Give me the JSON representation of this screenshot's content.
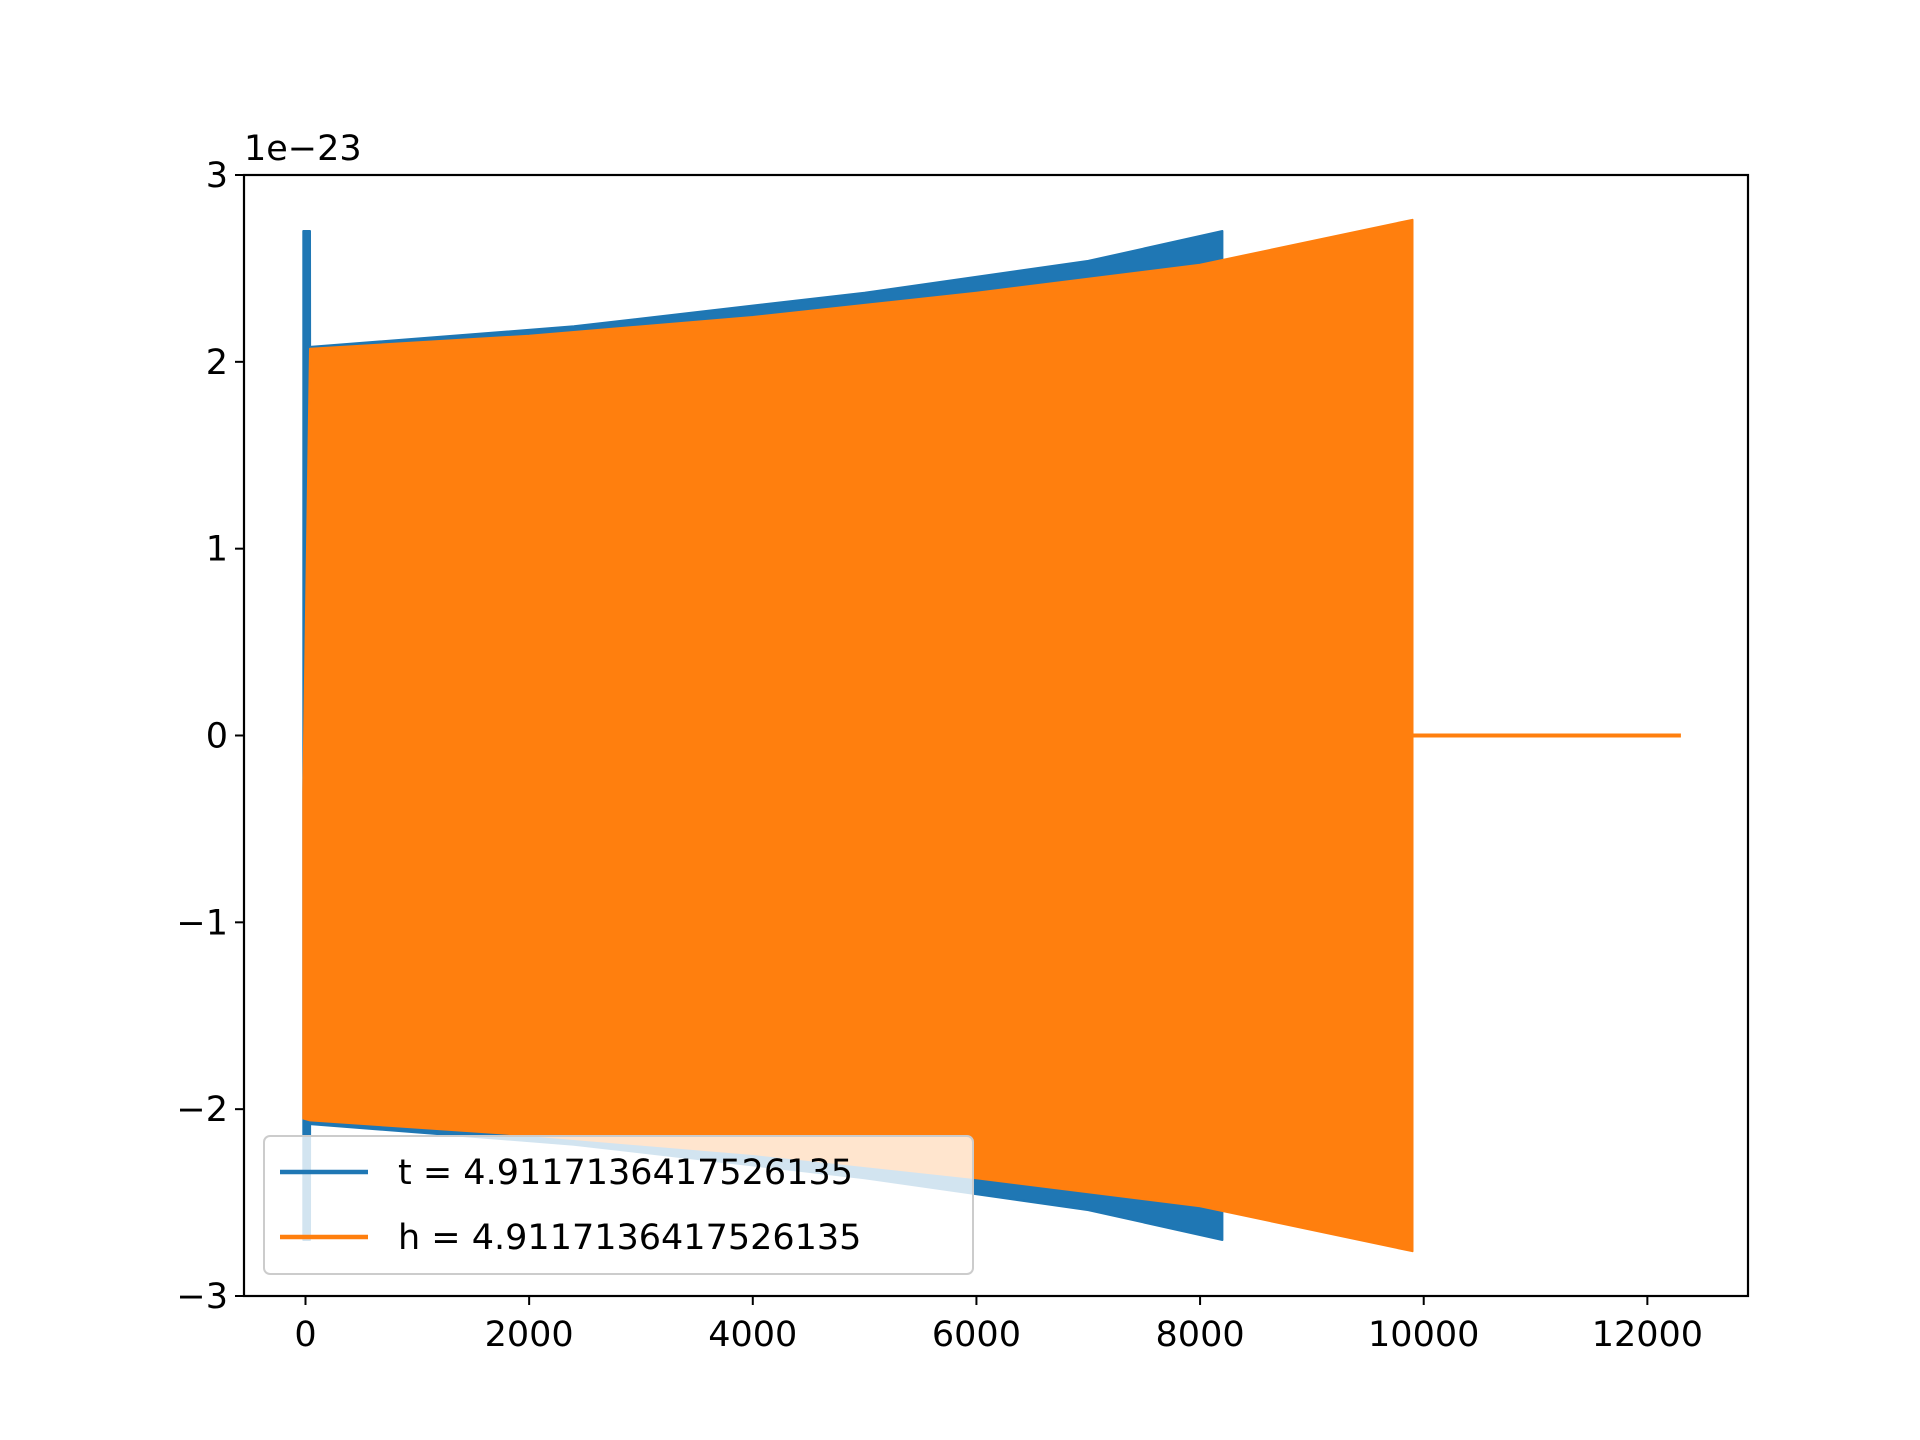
{
  "chart_data": {
    "type": "line",
    "xlim": [
      -550,
      12900
    ],
    "ylim": [
      -3,
      3
    ],
    "x_ticks": [
      0,
      2000,
      4000,
      6000,
      8000,
      10000,
      12000
    ],
    "x_tick_labels": [
      "0",
      "2000",
      "4000",
      "6000",
      "8000",
      "10000",
      "12000"
    ],
    "y_ticks": [
      -3,
      -2,
      -1,
      0,
      1,
      2,
      3
    ],
    "y_tick_labels": [
      "−3",
      "−2",
      "−1",
      "0",
      "1",
      "2",
      "3"
    ],
    "y_offset_label": "1e−23",
    "grid": false,
    "legend_position": "lower left",
    "series": [
      {
        "name": "t = 4.9117136417526135",
        "color": "#1f77b4",
        "render": "oscillation-envelope",
        "envelope": [
          {
            "x": -20,
            "y_min": -2.7,
            "y_max": 2.7
          },
          {
            "x": 40,
            "y_min": -2.7,
            "y_max": 2.7
          },
          {
            "x": 41,
            "y_min": -2.08,
            "y_max": 2.08
          },
          {
            "x": 2400,
            "y_min": -2.19,
            "y_max": 2.19
          },
          {
            "x": 5000,
            "y_min": -2.37,
            "y_max": 2.37
          },
          {
            "x": 7000,
            "y_min": -2.54,
            "y_max": 2.54
          },
          {
            "x": 8200,
            "y_min": -2.7,
            "y_max": 2.7
          }
        ]
      },
      {
        "name": "h = 4.9117136417526135",
        "color": "#ff7f0e",
        "render": "oscillation-envelope",
        "envelope": [
          {
            "x": -20,
            "y_min": -2.05,
            "y_max": -0.3
          },
          {
            "x": 40,
            "y_min": -2.06,
            "y_max": 2.07
          },
          {
            "x": 2000,
            "y_min": -2.14,
            "y_max": 2.14
          },
          {
            "x": 4000,
            "y_min": -2.24,
            "y_max": 2.24
          },
          {
            "x": 6000,
            "y_min": -2.37,
            "y_max": 2.37
          },
          {
            "x": 8000,
            "y_min": -2.52,
            "y_max": 2.52
          },
          {
            "x": 9900,
            "y_min": -2.76,
            "y_max": 2.76
          }
        ],
        "tail": {
          "x_start": 9900,
          "x_end": 12300,
          "y": 0
        }
      }
    ]
  }
}
